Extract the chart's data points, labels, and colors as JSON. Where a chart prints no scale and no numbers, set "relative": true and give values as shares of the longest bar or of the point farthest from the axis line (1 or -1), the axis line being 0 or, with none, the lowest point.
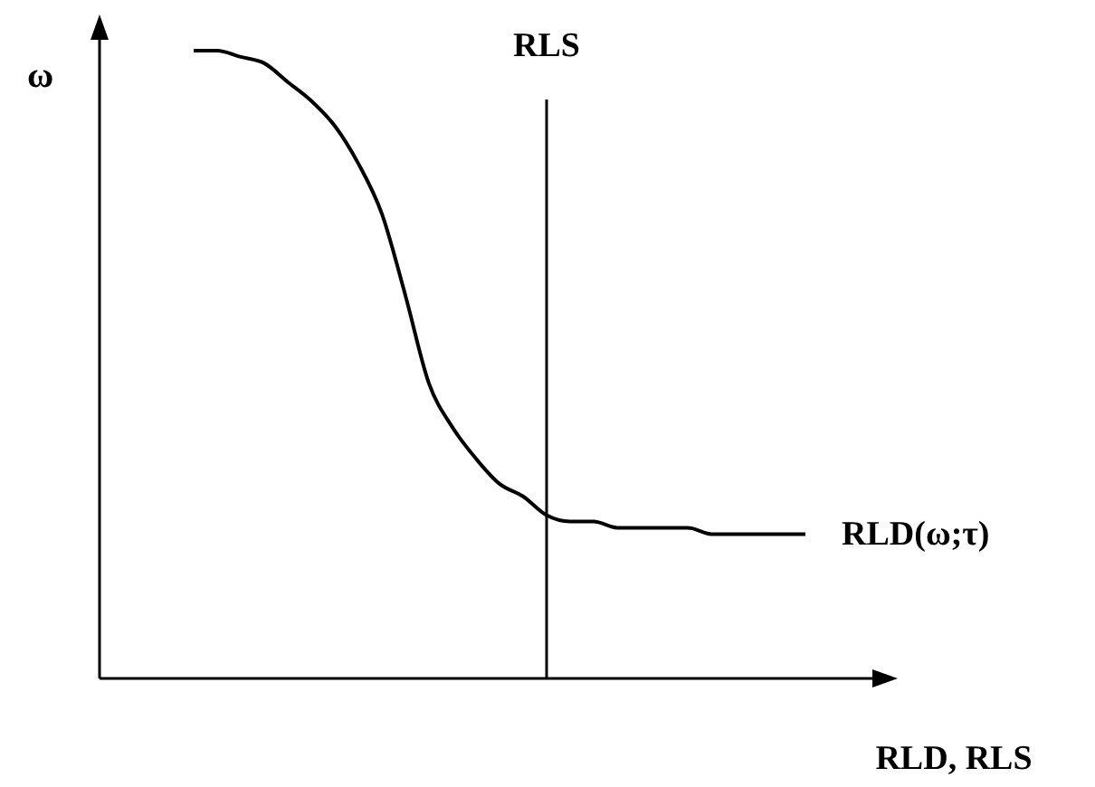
{
  "chart_data": {
    "type": "line",
    "relative": true,
    "ylabel": "ω",
    "xlabel": "RLD, RLS",
    "marker": "none",
    "line_style": "solid",
    "categories": [
      null,
      null,
      null,
      null,
      null,
      null,
      null,
      null,
      null,
      null,
      null,
      null,
      null,
      null,
      null,
      null,
      null,
      null,
      null,
      null,
      null,
      null,
      null,
      null,
      null,
      null,
      null,
      null,
      null,
      null,
      null,
      null,
      null,
      null
    ],
    "series": [
      {
        "name": "RLD(ω;τ)",
        "color": "#000000",
        "values": [
          null,
          null,
          null,
          null,
          1.0,
          1.0,
          0.99,
          0.98,
          0.95,
          0.92,
          0.88,
          0.82,
          0.74,
          0.61,
          0.47,
          0.4,
          0.35,
          0.31,
          0.29,
          0.26,
          0.25,
          0.25,
          0.24,
          0.24,
          0.24,
          0.24,
          0.23,
          0.23,
          0.23,
          0.23,
          0.23,
          null,
          null,
          null
        ]
      }
    ],
    "annotations": [
      "RLS"
    ]
  }
}
